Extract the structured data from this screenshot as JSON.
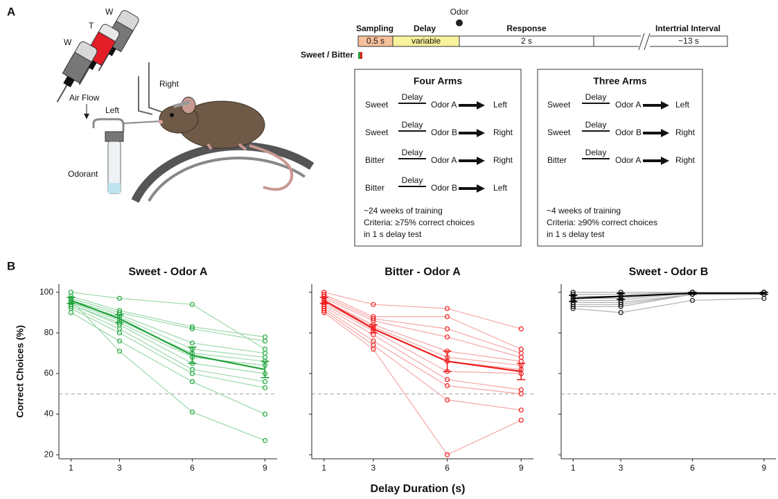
{
  "panel_a": {
    "label": "A",
    "illustration": {
      "bottles": [
        "W",
        "T",
        "W"
      ],
      "right": "Right",
      "left": "Left",
      "air_flow": "Air Flow",
      "odorant": "Odorant"
    },
    "timeline": {
      "odor": "Odor",
      "phases": [
        "Sampling",
        "Delay",
        "Response",
        "Intertrial Interval"
      ],
      "durations": [
        "0.5 s",
        "variable",
        "2 s",
        "~13 s"
      ],
      "cue": "Sweet / Bitter"
    },
    "boxes": [
      {
        "title": "Four Arms",
        "rules": [
          [
            "Sweet",
            "Delay",
            "Odor A",
            "Left"
          ],
          [
            "Sweet",
            "Delay",
            "Odor B",
            "Right"
          ],
          [
            "Bitter",
            "Delay",
            "Odor A",
            "Right"
          ],
          [
            "Bitter",
            "Delay",
            "Odor B",
            "Left"
          ]
        ],
        "notes": [
          "~24 weeks of training",
          "Criteria:  ≥75% correct choices",
          "in 1 s delay test"
        ]
      },
      {
        "title": "Three Arms",
        "rules": [
          [
            "Sweet",
            "Delay",
            "Odor A",
            "Left"
          ],
          [
            "Sweet",
            "Delay",
            "Odor B",
            "Right"
          ],
          [
            "Bitter",
            "Delay",
            "Odor A",
            "Right"
          ]
        ],
        "notes": [
          "~4 weeks of training",
          "Criteria:  ≥90% correct  choices",
          "in 1 s delay test"
        ]
      }
    ]
  },
  "panel_b_label": "B",
  "x_label": "Delay Duration (s)",
  "chart_data": [
    {
      "type": "line",
      "title": "Sweet - Odor A",
      "y_label": "Correct Choices (%)",
      "x": [
        1,
        3,
        6,
        9
      ],
      "xlim": [
        0.5,
        9.5
      ],
      "xticks": [
        1,
        3,
        6,
        9
      ],
      "ylim": [
        18,
        104
      ],
      "yticks": [
        20,
        40,
        60,
        80,
        100
      ],
      "ytick_labels": true,
      "reference_line": 50,
      "color": "#9bd8a9",
      "point_color": "#22a83e",
      "series": [
        {
          "values": [
            100,
            97,
            94,
            72
          ]
        },
        {
          "values": [
            98,
            91,
            83,
            78
          ]
        },
        {
          "values": [
            97,
            90,
            82,
            76
          ]
        },
        {
          "values": [
            96,
            89,
            75,
            70
          ]
        },
        {
          "values": [
            95,
            88,
            72,
            68
          ]
        },
        {
          "values": [
            95,
            86,
            70,
            66
          ]
        },
        {
          "values": [
            94,
            85,
            68,
            64
          ]
        },
        {
          "values": [
            94,
            84,
            65,
            60
          ]
        },
        {
          "values": [
            93,
            82,
            62,
            56
          ]
        },
        {
          "values": [
            92,
            80,
            60,
            53
          ]
        },
        {
          "values": [
            90,
            76,
            56,
            40
          ]
        },
        {
          "values": [
            96,
            71,
            41,
            27
          ]
        }
      ],
      "mean": {
        "color": "#1fa33a",
        "values": [
          96,
          87,
          69,
          62
        ],
        "error": [
          1.5,
          2,
          4,
          4
        ]
      }
    },
    {
      "type": "line",
      "title": "Bitter - Odor A",
      "x": [
        1,
        3,
        6,
        9
      ],
      "xlim": [
        0.5,
        9.5
      ],
      "xticks": [
        1,
        3,
        6,
        9
      ],
      "ylim": [
        18,
        104
      ],
      "yticks": [
        20,
        40,
        60,
        80,
        100
      ],
      "ytick_labels": false,
      "reference_line": 50,
      "color": "#f6a5a5",
      "point_color": "#ee1c1c",
      "series": [
        {
          "values": [
            100,
            94,
            92,
            82
          ]
        },
        {
          "values": [
            99,
            88,
            88,
            72
          ]
        },
        {
          "values": [
            98,
            87,
            82,
            70
          ]
        },
        {
          "values": [
            97,
            86,
            78,
            68
          ]
        },
        {
          "values": [
            96,
            84,
            71,
            66
          ]
        },
        {
          "values": [
            96,
            83,
            68,
            64
          ]
        },
        {
          "values": [
            95,
            82,
            66,
            62
          ]
        },
        {
          "values": [
            94,
            81,
            61,
            60
          ]
        },
        {
          "values": [
            93,
            79,
            57,
            52
          ]
        },
        {
          "values": [
            92,
            76,
            54,
            50
          ]
        },
        {
          "values": [
            91,
            74,
            47,
            42
          ]
        },
        {
          "values": [
            90,
            72,
            20,
            37
          ]
        }
      ],
      "mean": {
        "color": "#ee1c1c",
        "values": [
          96,
          82,
          66,
          61
        ],
        "error": [
          1.5,
          2,
          5,
          4
        ]
      }
    },
    {
      "type": "line",
      "title": "Sweet - Odor B",
      "x": [
        1,
        3,
        6,
        9
      ],
      "xlim": [
        0.5,
        9.5
      ],
      "xticks": [
        1,
        3,
        6,
        9
      ],
      "ylim": [
        18,
        104
      ],
      "yticks": [
        20,
        40,
        60,
        80,
        100
      ],
      "ytick_labels": false,
      "reference_line": 50,
      "color": "#b0b0b0",
      "point_color": "#111111",
      "series": [
        {
          "values": [
            100,
            100,
            100,
            100
          ]
        },
        {
          "values": [
            99,
            99,
            100,
            100
          ]
        },
        {
          "values": [
            98,
            98,
            100,
            100
          ]
        },
        {
          "values": [
            97,
            97,
            100,
            100
          ]
        },
        {
          "values": [
            96,
            96,
            100,
            100
          ]
        },
        {
          "values": [
            95,
            95,
            99,
            100
          ]
        },
        {
          "values": [
            94,
            94,
            99,
            99
          ]
        },
        {
          "values": [
            93,
            93,
            99,
            99
          ]
        },
        {
          "values": [
            92,
            90,
            96,
            97
          ]
        }
      ],
      "mean": {
        "color": "#000000",
        "values": [
          97,
          98,
          99.5,
          99.5
        ],
        "error": [
          1.5,
          1.5,
          0.5,
          0.5
        ]
      }
    }
  ]
}
